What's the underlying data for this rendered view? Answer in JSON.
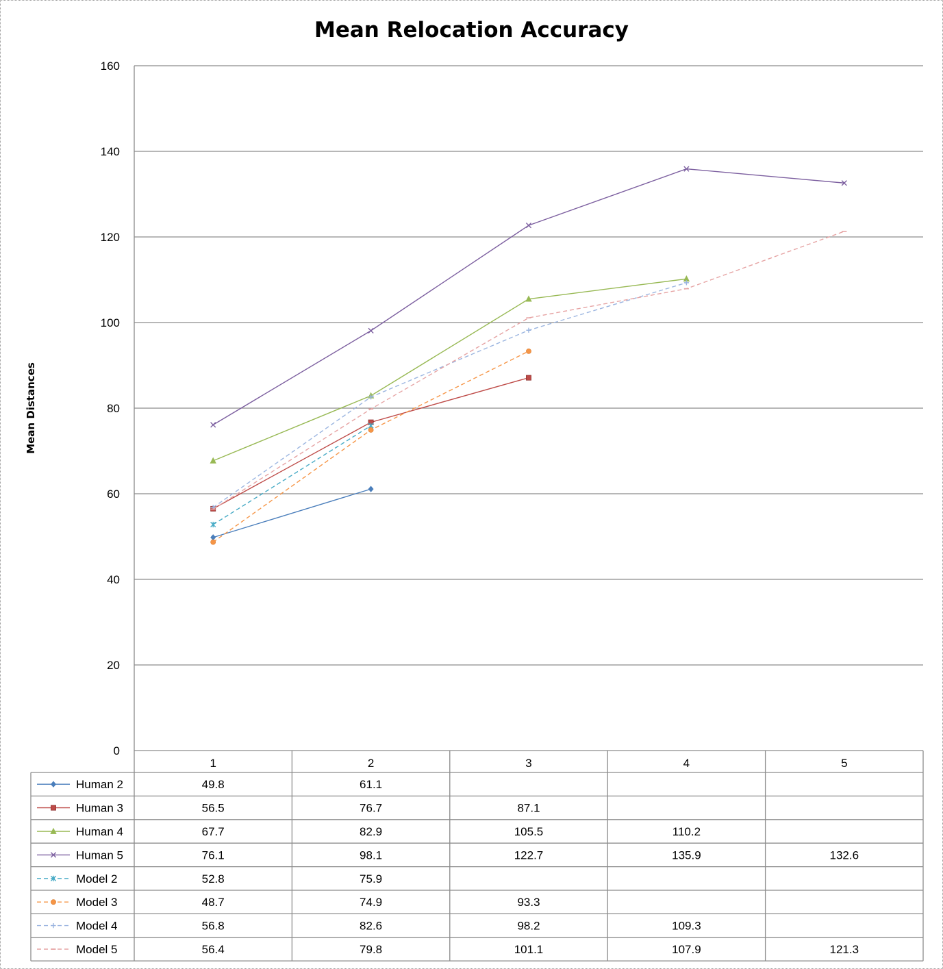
{
  "chart_data": {
    "type": "line",
    "title": "Mean Relocation Accuracy",
    "ylabel": "Mean Distances",
    "xlabel": "",
    "categories": [
      "1",
      "2",
      "3",
      "4",
      "5"
    ],
    "ylim": [
      0,
      160
    ],
    "yticks": [
      "0",
      "20",
      "40",
      "60",
      "80",
      "100",
      "120",
      "140",
      "160"
    ],
    "grid": true,
    "legend": "data-table-below",
    "series": [
      {
        "name": "Human 2",
        "values": [
          49.8,
          61.1,
          null,
          null,
          null
        ],
        "color": "#4a7ebb",
        "dash": false,
        "marker": "diamond"
      },
      {
        "name": "Human 3",
        "values": [
          56.5,
          76.7,
          87.1,
          null,
          null
        ],
        "color": "#be4b48",
        "dash": false,
        "marker": "square"
      },
      {
        "name": "Human 4",
        "values": [
          67.7,
          82.9,
          105.5,
          110.2,
          null
        ],
        "color": "#98b954",
        "dash": false,
        "marker": "triangle"
      },
      {
        "name": "Human 5",
        "values": [
          76.1,
          98.1,
          122.7,
          135.9,
          132.6
        ],
        "color": "#7d60a0",
        "dash": false,
        "marker": "x"
      },
      {
        "name": "Model 2",
        "values": [
          52.8,
          75.9,
          null,
          null,
          null
        ],
        "color": "#46aac5",
        "dash": true,
        "marker": "star"
      },
      {
        "name": "Model 3",
        "values": [
          48.7,
          74.9,
          93.3,
          null,
          null
        ],
        "color": "#f69546",
        "dash": true,
        "marker": "circle"
      },
      {
        "name": "Model 4",
        "values": [
          56.8,
          82.6,
          98.2,
          109.3,
          null
        ],
        "color": "#9bb5e0",
        "dash": true,
        "marker": "plus"
      },
      {
        "name": "Model 5",
        "values": [
          56.4,
          79.8,
          101.1,
          107.9,
          121.3
        ],
        "color": "#e6a3a3",
        "dash": true,
        "marker": "dash"
      }
    ],
    "table_values": [
      [
        "49.8",
        "61.1",
        "",
        "",
        ""
      ],
      [
        "56.5",
        "76.7",
        "87.1",
        "",
        ""
      ],
      [
        "67.7",
        "82.9",
        "105.5",
        "110.2",
        ""
      ],
      [
        "76.1",
        "98.1",
        "122.7",
        "135.9",
        "132.6"
      ],
      [
        "52.8",
        "75.9",
        "",
        "",
        ""
      ],
      [
        "48.7",
        "74.9",
        "93.3",
        "",
        ""
      ],
      [
        "56.8",
        "82.6",
        "98.2",
        "109.3",
        ""
      ],
      [
        "56.4",
        "79.8",
        "101.1",
        "107.9",
        "121.3"
      ]
    ]
  }
}
